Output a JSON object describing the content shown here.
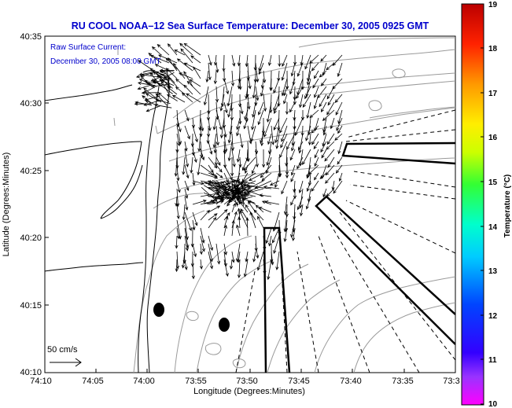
{
  "title": "RU COOL   NOAA–12  Sea Surface Temperature:  December 30, 2005 0925 GMT",
  "legend": {
    "line1": "Raw Surface Current:",
    "line2": "December 30, 2005 08:00 GMT"
  },
  "scale": {
    "label": "50 cm/s"
  },
  "axes": {
    "xlabel": "Longitude (Degrees:Minutes)",
    "ylabel": "Latitude (Degrees:Minutes)",
    "x_ticks": [
      "74:10",
      "74:05",
      "74:00",
      "73:55",
      "73:50",
      "73:45",
      "73:40",
      "73:35",
      "73:3"
    ],
    "y_ticks": [
      "40:35",
      "40:30",
      "40:25",
      "40:20",
      "40:15",
      "40:10"
    ]
  },
  "colorbar": {
    "label": "Temperature (°C)",
    "ticks": [
      "19",
      "18",
      "17",
      "16",
      "15",
      "14",
      "13",
      "12",
      "11",
      "10"
    ],
    "min": 10,
    "max": 19
  },
  "colors": {
    "title": "#0000cc",
    "legend": "#0000cc",
    "coast": "#000000",
    "bathymetry": "#9a9a9a",
    "vectors": "#000000"
  }
}
